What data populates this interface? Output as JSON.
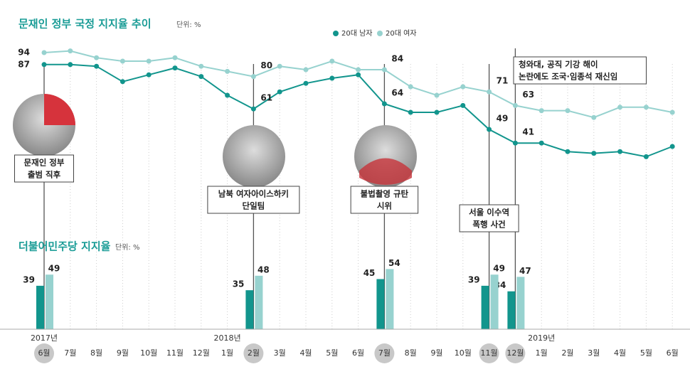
{
  "chart_data": [
    {
      "type": "line",
      "title": "문재인 정부 국정 지지율 추이",
      "unit": "단위: %",
      "ylim": [
        30,
        100
      ],
      "series": [
        {
          "name": "20대 남자",
          "color": "#12958d",
          "values": [
            87,
            87,
            86,
            77,
            81,
            85,
            80,
            69,
            61,
            71,
            76,
            79,
            81,
            64,
            59,
            59,
            63,
            49,
            41,
            41,
            36,
            35,
            36,
            33,
            39
          ],
          "value_labels": [
            "87",
            null,
            null,
            null,
            null,
            null,
            null,
            null,
            "61",
            null,
            null,
            null,
            null,
            "64",
            null,
            null,
            null,
            "49",
            "41",
            null,
            null,
            null,
            null,
            null,
            null
          ]
        },
        {
          "name": "20대 여자",
          "color": "#97d2cf",
          "values": [
            94,
            95,
            91,
            89,
            89,
            91,
            86,
            83,
            80,
            86,
            84,
            89,
            84,
            84,
            74,
            69,
            74,
            71,
            63,
            60,
            60,
            56,
            62,
            62,
            59
          ],
          "value_labels": [
            "94",
            null,
            null,
            null,
            null,
            null,
            null,
            null,
            "80",
            null,
            null,
            null,
            null,
            "84",
            null,
            null,
            null,
            "71",
            "63",
            null,
            null,
            null,
            null,
            null,
            null
          ]
        }
      ],
      "annotations": [
        [
          "문재인 정부",
          "출범 직후"
        ],
        null,
        null,
        null,
        null,
        null,
        null,
        null,
        [
          "남북 여자아이스하키",
          "단일팀"
        ],
        null,
        null,
        null,
        null,
        [
          "불법촬영 규탄",
          "시위"
        ],
        null,
        null,
        null,
        [
          "서울 이수역",
          "폭행 사건"
        ],
        [
          "청와대, 공직 기강 해이",
          "논란에도 조국·임종석 재신임"
        ],
        null,
        null,
        null,
        null,
        null,
        null
      ]
    },
    {
      "type": "bar",
      "title": "더불어민주당 지지율",
      "unit": "단위: %",
      "ylim": [
        0,
        60
      ],
      "categories": [
        "6월",
        "7월",
        "8월",
        "9월",
        "10월",
        "11월",
        "12월",
        "1월",
        "2월",
        "3월",
        "4월",
        "5월",
        "6월",
        "7월",
        "8월",
        "9월",
        "10월",
        "11월",
        "12월",
        "1월",
        "2월",
        "3월",
        "4월",
        "5월",
        "6월"
      ],
      "years": [
        "2017년",
        null,
        null,
        null,
        null,
        null,
        null,
        "2018년",
        null,
        null,
        null,
        null,
        null,
        null,
        null,
        null,
        null,
        null,
        null,
        "2019년",
        null,
        null,
        null,
        null,
        null
      ],
      "series": [
        {
          "color": "#12958d",
          "values": [
            39,
            null,
            null,
            null,
            null,
            null,
            null,
            null,
            35,
            null,
            null,
            null,
            null,
            45,
            null,
            null,
            null,
            39,
            34,
            null,
            null,
            null,
            null,
            null,
            null
          ]
        },
        {
          "color": "#97d2cf",
          "values": [
            49,
            null,
            null,
            null,
            null,
            null,
            null,
            null,
            48,
            null,
            null,
            null,
            null,
            54,
            null,
            null,
            null,
            49,
            47,
            null,
            null,
            null,
            null,
            null,
            null
          ]
        }
      ]
    }
  ]
}
